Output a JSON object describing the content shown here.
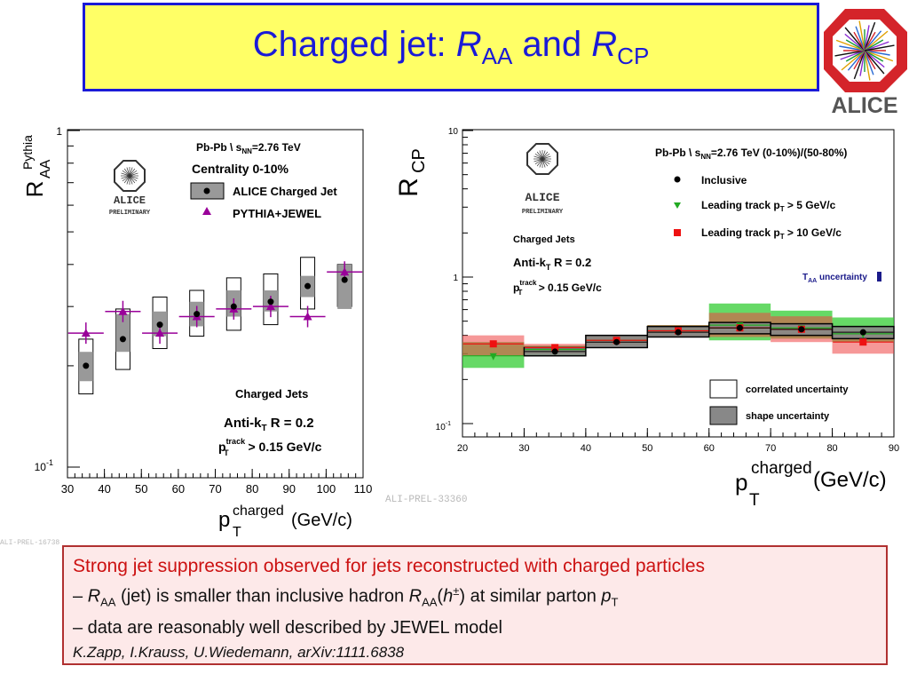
{
  "title": {
    "prefix": "Charged jet: ",
    "r1": "R",
    "sub1": "AA",
    "mid": " and ",
    "r2": "R",
    "sub2": "CP"
  },
  "logo": {
    "text": "ALICE"
  },
  "colors": {
    "title_blue": "#1a1ad8",
    "title_bg": "#ffff66",
    "note_red": "#cc1111",
    "note_bg": "#fde9e9",
    "pythia_purple": "#990099",
    "green_band": "#33cc33",
    "red_band": "#ee4444"
  },
  "tags": {
    "left": "ALI-PREL-16738",
    "right": "ALI-PREL-33360"
  },
  "chart_data": [
    {
      "type": "scatter",
      "ylabel": "R_AA^Pythia",
      "ylabel_main": "R",
      "ylabel_sup": "Pythia",
      "ylabel_sub": "AA",
      "xlabel_main": "p",
      "xlabel_sup": "charged",
      "xlabel_sub": "T",
      "xlabel_unit": "(GeV/c)",
      "xlim": [
        30,
        110
      ],
      "ylim": [
        0.1,
        1
      ],
      "log_y": true,
      "x_ticks": [
        30,
        40,
        50,
        60,
        70,
        80,
        90,
        100,
        110
      ],
      "y_tick_labels": {
        "top": "1",
        "bottom": "10"
      },
      "legend": {
        "header1": "Pb-Pb \\ s",
        "header1_sub": "NN",
        "header1_tail": "=2.76 TeV",
        "header2": "Centrality 0-10%",
        "entry1": "ALICE Charged Jet",
        "entry2": "PYTHIA+JEWEL",
        "preliminary": "PRELIMINARY",
        "alice": "ALICE"
      },
      "annotations": {
        "a1": "Charged Jets",
        "a2_main": "Anti-k",
        "a2_sub": "T",
        "a2_tail": " R = 0.2",
        "a3_main": "p",
        "a3_sup": "track",
        "a3_sub": "T",
        "a3_tail": " > 0.15 GeV/c"
      },
      "series": [
        {
          "name": "ALICE Charged Jet",
          "x": [
            35,
            45,
            55,
            65,
            75,
            85,
            95,
            105
          ],
          "y": [
            0.2,
            0.24,
            0.265,
            0.285,
            0.3,
            0.31,
            0.345,
            0.36
          ],
          "shape_low": [
            0.18,
            0.22,
            0.245,
            0.262,
            0.28,
            0.29,
            0.32,
            0.295
          ],
          "shape_high": [
            0.22,
            0.285,
            0.29,
            0.31,
            0.335,
            0.335,
            0.37,
            0.4
          ],
          "corr_low": [
            0.165,
            0.195,
            0.225,
            0.245,
            0.255,
            0.265,
            0.295,
            0.3
          ],
          "corr_high": [
            0.24,
            0.295,
            0.32,
            0.335,
            0.365,
            0.375,
            0.42,
            0.4
          ]
        },
        {
          "name": "PYTHIA+JEWEL",
          "x": [
            35,
            45,
            55,
            65,
            75,
            85,
            95,
            105
          ],
          "y": [
            0.25,
            0.29,
            0.25,
            0.28,
            0.295,
            0.3,
            0.28,
            0.38
          ]
        }
      ]
    },
    {
      "type": "scatter",
      "ylabel_main": "R",
      "ylabel_sub": "CP",
      "xlabel_main": "p",
      "xlabel_sup": "charged",
      "xlabel_sub": "T",
      "xlabel_unit": "(GeV/c)",
      "xlim": [
        20,
        90
      ],
      "ylim": [
        0.1,
        10
      ],
      "log_y": true,
      "x_ticks": [
        20,
        30,
        40,
        50,
        60,
        70,
        80,
        90
      ],
      "y_tick_labels": {
        "top": "10",
        "mid": "1",
        "bottom": "10"
      },
      "legend": {
        "header_main": "Pb-Pb \\ s",
        "header_sub": "NN",
        "header_tail": "=2.76 TeV  (0-10%)/(50-80%)",
        "entry1": "Inclusive",
        "entry2": "Leading track p",
        "entry2_sub": "T",
        "entry2_tail": " > 5 GeV/c",
        "entry3": "Leading track p",
        "entry3_sub": "T",
        "entry3_tail": " > 10 GeV/c",
        "taa_main": "T",
        "taa_sub": "AA",
        "taa_tail": " uncertainty",
        "box1": "correlated uncertainty",
        "box2": "shape uncertainty",
        "preliminary": "PRELIMINARY",
        "alice": "ALICE"
      },
      "annotations": {
        "a1": "Charged Jets",
        "a2_main": "Anti-k",
        "a2_sub": "T",
        "a2_tail": " R = 0.2",
        "a3_main": "p",
        "a3_sup": "track",
        "a3_sub": "T",
        "a3_tail": " > 0.15 GeV/c"
      },
      "bins": [
        [
          20,
          30
        ],
        [
          30,
          40
        ],
        [
          40,
          50
        ],
        [
          50,
          60
        ],
        [
          60,
          70
        ],
        [
          70,
          80
        ],
        [
          80,
          90
        ]
      ],
      "series": [
        {
          "name": "Inclusive",
          "x": [
            35,
            45,
            55,
            65,
            75,
            85
          ],
          "y": [
            0.31,
            0.36,
            0.42,
            0.45,
            0.44,
            0.42
          ],
          "band_low": [
            0.29,
            0.33,
            0.39,
            0.41,
            0.4,
            0.38
          ],
          "band_high": [
            0.33,
            0.4,
            0.46,
            0.49,
            0.48,
            0.46
          ]
        },
        {
          "name": "Leading track pT > 5 GeV/c",
          "x": [
            25,
            35,
            45,
            55,
            65,
            75,
            85
          ],
          "y": [
            0.29,
            0.32,
            0.37,
            0.43,
            0.47,
            0.45,
            0.41
          ],
          "band_low": [
            0.24,
            0.29,
            0.34,
            0.39,
            0.37,
            0.38,
            0.36
          ],
          "band_high": [
            0.36,
            0.34,
            0.4,
            0.47,
            0.66,
            0.59,
            0.53
          ]
        },
        {
          "name": "Leading track pT > 10 GeV/c",
          "x": [
            25,
            35,
            45,
            55,
            65,
            75,
            85
          ],
          "y": [
            0.35,
            0.33,
            0.37,
            0.43,
            0.45,
            0.44,
            0.36
          ],
          "band_low": [
            0.29,
            0.3,
            0.34,
            0.39,
            0.39,
            0.36,
            0.3
          ],
          "band_high": [
            0.4,
            0.35,
            0.4,
            0.47,
            0.57,
            0.54,
            0.43
          ]
        }
      ]
    }
  ],
  "note": {
    "line1": "Strong jet suppression observed for jets reconstructed with charged particles",
    "line2_a": "– ",
    "line2_r": "R",
    "line2_sub": "AA",
    "line2_b": " (jet) is smaller than inclusive hadron ",
    "line2_r2": "R",
    "line2_sub2": "AA",
    "line2_c": "(",
    "line2_h": "h",
    "line2_sup": "±",
    "line2_d": ") at similar parton ",
    "line2_p": "p",
    "line2_psub": "T",
    "line3": "– data are reasonably well described by JEWEL model",
    "line4": "K.Zapp, I.Krauss, U.Wiedemann, arXiv:1111.6838"
  }
}
